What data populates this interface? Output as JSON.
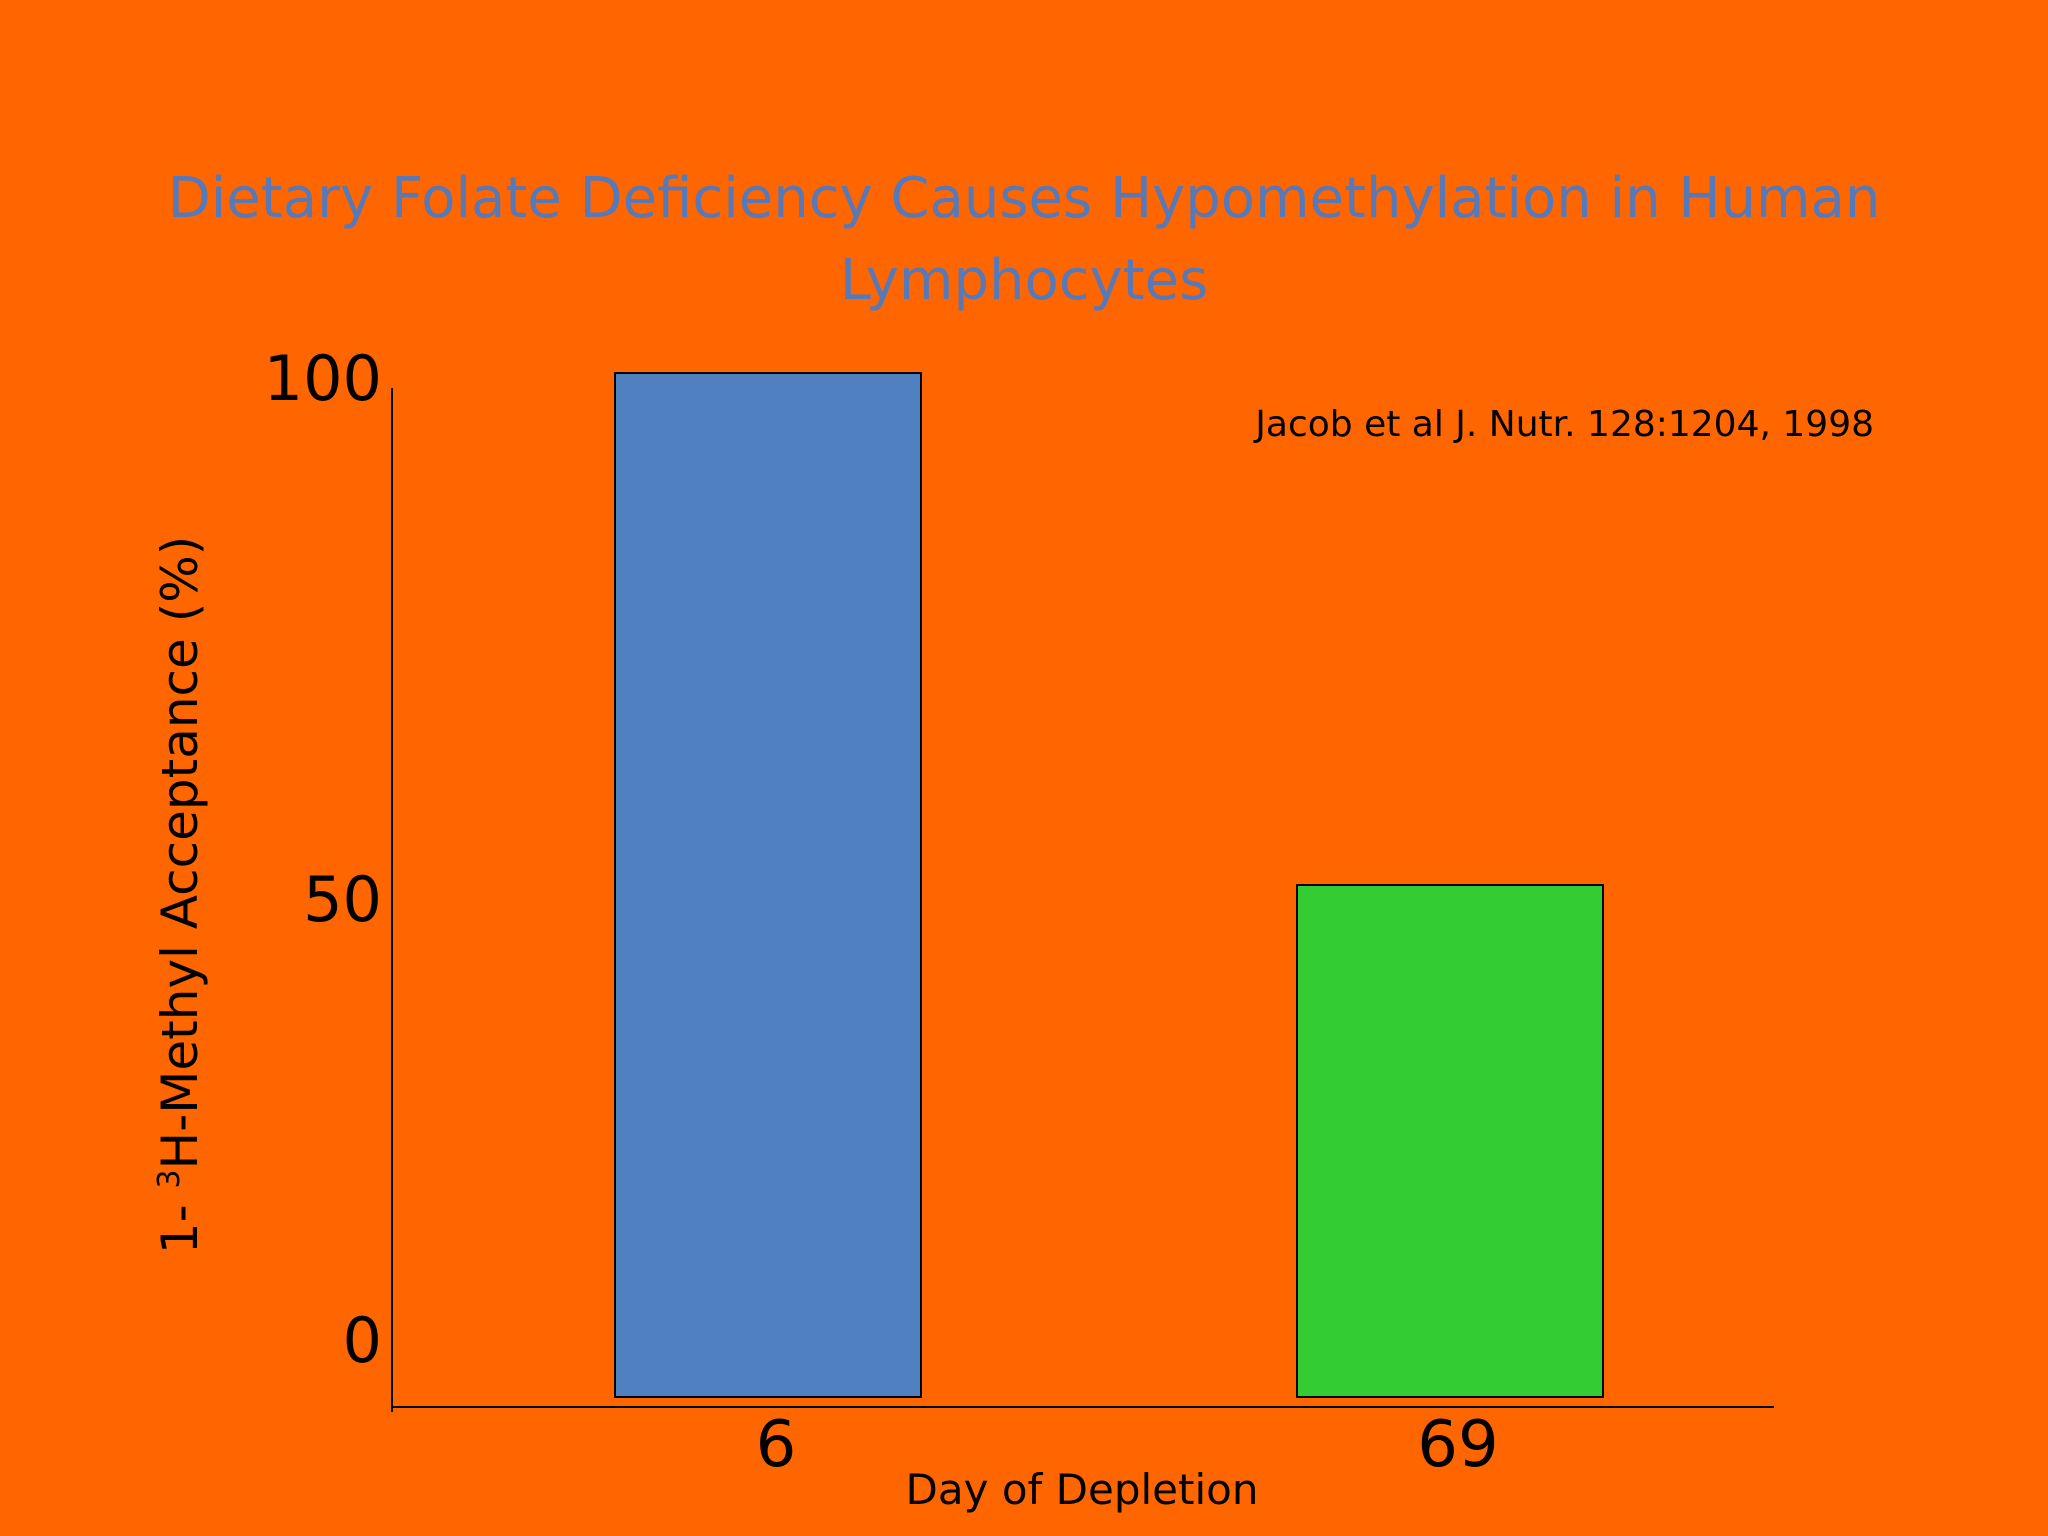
{
  "slide": {
    "background": "#ff6600",
    "title_line1": "Dietary Folate Deficiency Causes Hypomethylation in Human",
    "title_line2": "Lymphocytes",
    "title_color": "#5779b8",
    "citation": "Jacob et al J. Nutr. 128:1204, 1998"
  },
  "chart_data": {
    "type": "bar",
    "categories": [
      "6",
      "69"
    ],
    "values": [
      100,
      50
    ],
    "colors": [
      "#5180c1",
      "#33cc33"
    ],
    "title": "Dietary Folate Deficiency Causes Hypomethylation in Human Lymphocytes",
    "xlabel": "Day of Depletion",
    "ylabel_prefix": "1- ",
    "ylabel_superscript": "3",
    "ylabel_rest": "H-Methyl Acceptance (%)",
    "yticks": [
      "0",
      "50",
      "100"
    ],
    "ylim": [
      0,
      100
    ],
    "grid": false,
    "legend": "none",
    "annotation": "Jacob et al J. Nutr. 128:1204, 1998"
  }
}
